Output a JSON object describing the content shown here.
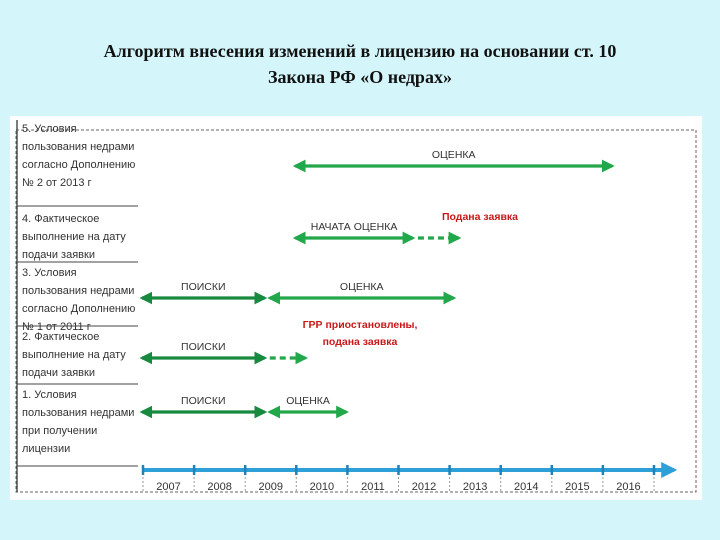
{
  "title": {
    "line1": "Алгоритм внесения изменений в лицензию на основании ст. 10",
    "line2": "Закона РФ «О недрах»"
  },
  "colors": {
    "background": "#d4f6fb",
    "bar_green": "#22a84a",
    "bar_dark_green": "#178a3f",
    "timeline_blue": "#2ea0d8",
    "tick_blue": "#1f82b8",
    "red_text": "#c81818"
  },
  "rows": [
    {
      "lines": [
        "5. Условия",
        "пользования недрами",
        "согласно Дополнению",
        "№ 2 от 2013 г"
      ]
    },
    {
      "lines": [
        "4. Фактическое",
        "выполнение на дату",
        "подачи заявки"
      ]
    },
    {
      "lines": [
        "3. Условия",
        "пользования недрами",
        "согласно Дополнению",
        "№ 1 от 2011 г"
      ]
    },
    {
      "lines": [
        "2. Фактическое",
        "выполнение на дату",
        "подачи заявки"
      ]
    },
    {
      "lines": [
        "1. Условия",
        "пользования недрами",
        "при получении",
        "лицензии"
      ]
    }
  ],
  "bars": [
    {
      "row": 5,
      "label": "ОЦЕНКА",
      "from": 2010,
      "to": 2016.2,
      "dashed": false
    },
    {
      "row": 4,
      "label": "НАЧАТА ОЦЕНКА",
      "from": 2010,
      "to": 2012.3,
      "dashed": false
    },
    {
      "row": 4,
      "label": "",
      "from": 2012.4,
      "to": 2013.2,
      "dashed": true
    },
    {
      "row": 3,
      "label": "ПОИСКИ",
      "from": 2007,
      "to": 2009.4,
      "dashed": false
    },
    {
      "row": 3,
      "label": "ОЦЕНКА",
      "from": 2009.5,
      "to": 2013.1,
      "dashed": false
    },
    {
      "row": 2,
      "label": "ПОИСКИ",
      "from": 2007,
      "to": 2009.4,
      "dashed": false
    },
    {
      "row": 2,
      "label": "",
      "from": 2009.5,
      "to": 2010.2,
      "dashed": true
    },
    {
      "row": 1,
      "label": "ПОИСКИ",
      "from": 2007,
      "to": 2009.4,
      "dashed": false
    },
    {
      "row": 1,
      "label": "ОЦЕНКА",
      "from": 2009.5,
      "to": 2011,
      "dashed": false
    }
  ],
  "notes": [
    {
      "row": 4,
      "lines": [
        "Подана заявка"
      ]
    },
    {
      "row": 2,
      "lines": [
        "ГРР приостановлены,",
        "подана заявка"
      ]
    }
  ],
  "timeline": {
    "years": [
      "2007",
      "2008",
      "2009",
      "2010",
      "2011",
      "2012",
      "2013",
      "2014",
      "2015",
      "2016"
    ]
  }
}
